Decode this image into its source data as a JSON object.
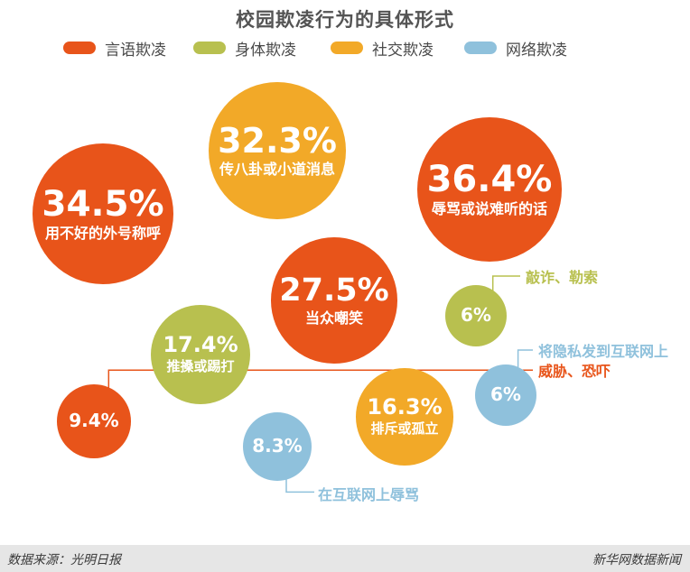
{
  "chart_data": {
    "type": "bubble",
    "title": "校园欺凌行为的具体形式",
    "legend_position": "top",
    "series": [
      {
        "name": "言语欺凌",
        "color": "#e8541a"
      },
      {
        "name": "身体欺凌",
        "color": "#b8c04f"
      },
      {
        "name": "社交欺凌",
        "color": "#f2a928"
      },
      {
        "name": "网络欺凌",
        "color": "#8fc1dc"
      }
    ],
    "points": [
      {
        "label": "辱骂或说难听的话",
        "value": 36.4,
        "display": "36.4%",
        "series": "言语欺凌"
      },
      {
        "label": "用不好的外号称呼",
        "value": 34.5,
        "display": "34.5%",
        "series": "言语欺凌"
      },
      {
        "label": "传八卦或小道消息",
        "value": 32.3,
        "display": "32.3%",
        "series": "社交欺凌"
      },
      {
        "label": "当众嘲笑",
        "value": 27.5,
        "display": "27.5%",
        "series": "言语欺凌"
      },
      {
        "label": "推搡或踢打",
        "value": 17.4,
        "display": "17.4%",
        "series": "身体欺凌"
      },
      {
        "label": "排斥或孤立",
        "value": 16.3,
        "display": "16.3%",
        "series": "社交欺凌"
      },
      {
        "label": "威胁、恐吓",
        "value": 9.4,
        "display": "9.4%",
        "series": "言语欺凌"
      },
      {
        "label": "在互联网上辱骂",
        "value": 8.3,
        "display": "8.3%",
        "series": "网络欺凌"
      },
      {
        "label": "敲诈、勒索",
        "value": 6,
        "display": "6%",
        "series": "身体欺凌"
      },
      {
        "label": "将隐私发到互联网上",
        "value": 6,
        "display": "6%",
        "series": "网络欺凌"
      }
    ]
  },
  "footer": {
    "source": "数据来源：光明日报",
    "brand": "新华网数据新闻"
  }
}
